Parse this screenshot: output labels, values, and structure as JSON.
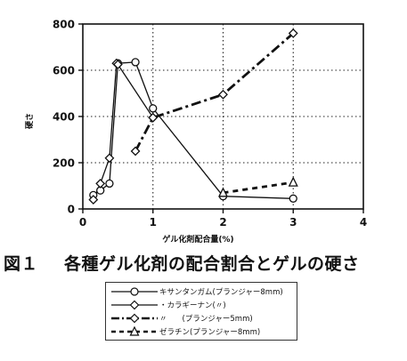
{
  "chart_data": {
    "type": "line",
    "title": "",
    "xlabel": "ゲル化剤配合量(%)",
    "ylabel": "硬さ",
    "xlim": [
      0,
      4
    ],
    "ylim": [
      0,
      800
    ],
    "xticks": [
      0,
      1,
      2,
      3,
      4
    ],
    "yticks": [
      0,
      200,
      400,
      600,
      800
    ],
    "xtick_labels": [
      "0",
      "1",
      "2",
      "3",
      "4"
    ],
    "ytick_labels": [
      "0",
      "200",
      "400",
      "600",
      "800"
    ],
    "grid": "dotted",
    "legend_position": "below",
    "series": [
      {
        "name": "キサンタンガム(プランジャー8mm)",
        "marker": "circle",
        "line": "solid-thin",
        "color": "#111111",
        "x": [
          0.15,
          0.25,
          0.38,
          0.5,
          0.75,
          1.0,
          2.0,
          3.0
        ],
        "y": [
          60,
          80,
          110,
          630,
          635,
          435,
          55,
          45
        ]
      },
      {
        "name": "・カラギーナン(〃)",
        "marker": "diamond",
        "line": "solid-thin",
        "color": "#111111",
        "x": [
          0.15,
          0.25,
          0.38,
          0.48,
          0.5,
          1.0
        ],
        "y": [
          40,
          110,
          220,
          630,
          625,
          395
        ]
      },
      {
        "name": "〃　　(プランジャー5mm)",
        "marker": "diamond",
        "line": "dash-dot-thick",
        "color": "#111111",
        "x": [
          0.75,
          1.0,
          2.0,
          3.0
        ],
        "y": [
          250,
          395,
          495,
          760
        ]
      },
      {
        "name": "ゼラチン(プランジャー8mm)",
        "marker": "triangle",
        "line": "dashed-thick",
        "color": "#111111",
        "x": [
          2.0,
          3.0
        ],
        "y": [
          70,
          115
        ]
      }
    ]
  },
  "caption": {
    "figure_number": "図１",
    "text": "各種ゲル化剤の配合割合とゲルの硬さ"
  }
}
